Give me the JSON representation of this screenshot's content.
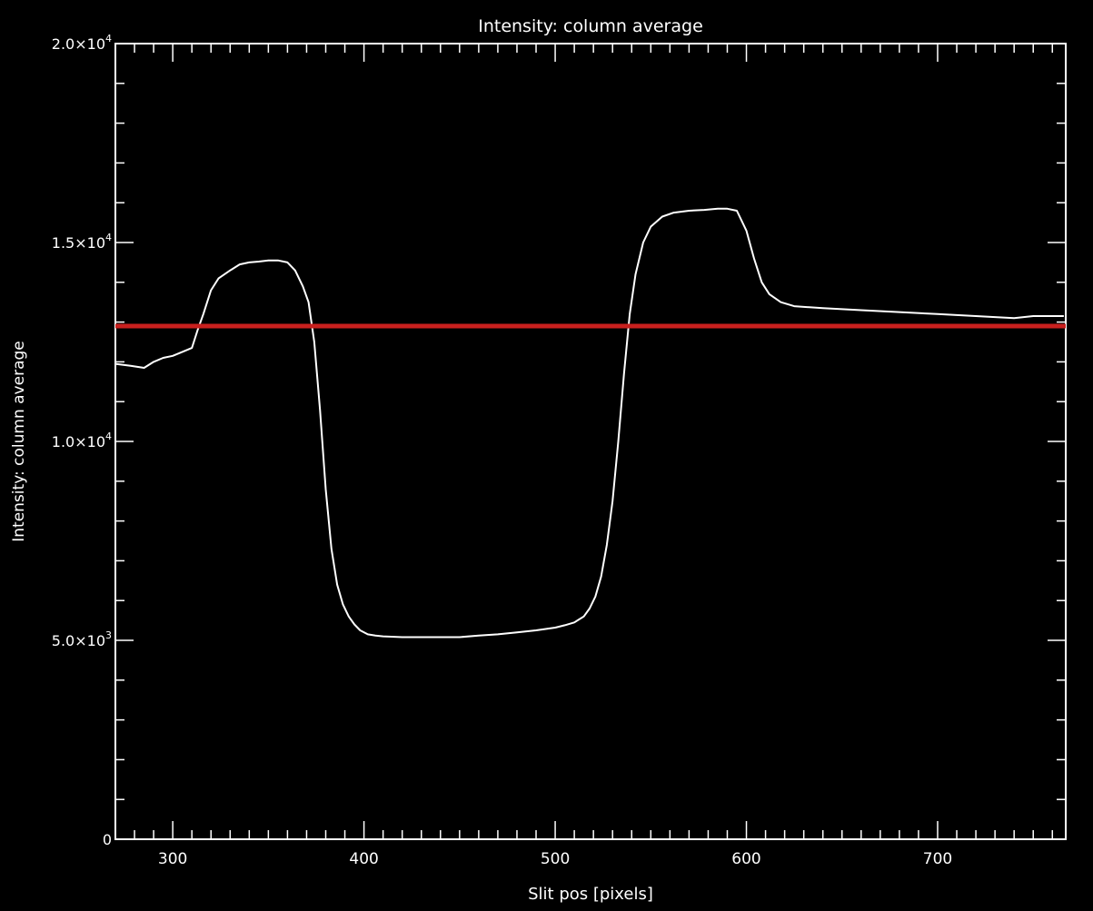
{
  "chart_data": {
    "type": "line",
    "title": "Intensity: column average",
    "xlabel": "Slit pos [pixels]",
    "ylabel": "Intensity: column average",
    "xlim": [
      270,
      767
    ],
    "ylim": [
      0,
      20000
    ],
    "x_major_ticks": [
      300,
      400,
      500,
      600,
      700
    ],
    "x_tick_labels": [
      "300",
      "400",
      "500",
      "600",
      "700"
    ],
    "x_minor_step": 10,
    "y_major_ticks": [
      0,
      5000,
      10000,
      15000,
      20000
    ],
    "y_tick_labels": [
      {
        "mantissa": "0",
        "exp": ""
      },
      {
        "mantissa": "5.0×10",
        "exp": "3"
      },
      {
        "mantissa": "1.0×10",
        "exp": "4"
      },
      {
        "mantissa": "1.5×10",
        "exp": "4"
      },
      {
        "mantissa": "2.0×10",
        "exp": "4"
      }
    ],
    "y_minor_step": 1000,
    "grid": false,
    "series": [
      {
        "color": "#ffffff",
        "x": [
          270,
          278,
          285,
          290,
          295,
          300,
          305,
          310,
          313,
          316,
          320,
          324,
          330,
          335,
          340,
          345,
          350,
          355,
          360,
          364,
          368,
          371,
          374,
          377,
          380,
          383,
          386,
          389,
          392,
          395,
          398,
          402,
          406,
          410,
          420,
          430,
          440,
          450,
          460,
          470,
          480,
          490,
          500,
          505,
          510,
          515,
          518,
          521,
          524,
          527,
          530,
          533,
          536,
          539,
          542,
          546,
          550,
          556,
          562,
          570,
          578,
          585,
          590,
          595,
          600,
          604,
          608,
          612,
          618,
          625,
          640,
          660,
          680,
          700,
          720,
          740,
          750,
          766
        ],
        "y": [
          11950,
          11900,
          11850,
          12000,
          12100,
          12150,
          12250,
          12350,
          12800,
          13200,
          13800,
          14100,
          14300,
          14450,
          14500,
          14520,
          14550,
          14550,
          14500,
          14300,
          13900,
          13500,
          12500,
          10800,
          8800,
          7300,
          6400,
          5900,
          5600,
          5400,
          5250,
          5150,
          5120,
          5100,
          5080,
          5080,
          5080,
          5080,
          5120,
          5150,
          5200,
          5250,
          5320,
          5380,
          5450,
          5600,
          5800,
          6100,
          6600,
          7400,
          8500,
          10000,
          11700,
          13200,
          14200,
          15000,
          15400,
          15650,
          15750,
          15800,
          15820,
          15850,
          15850,
          15800,
          15300,
          14600,
          14000,
          13700,
          13500,
          13400,
          13350,
          13300,
          13250,
          13200,
          13150,
          13100,
          13150,
          13150
        ]
      },
      {
        "color": "#c8201e",
        "x": [
          270,
          767
        ],
        "y": [
          12900,
          12900
        ]
      }
    ]
  }
}
